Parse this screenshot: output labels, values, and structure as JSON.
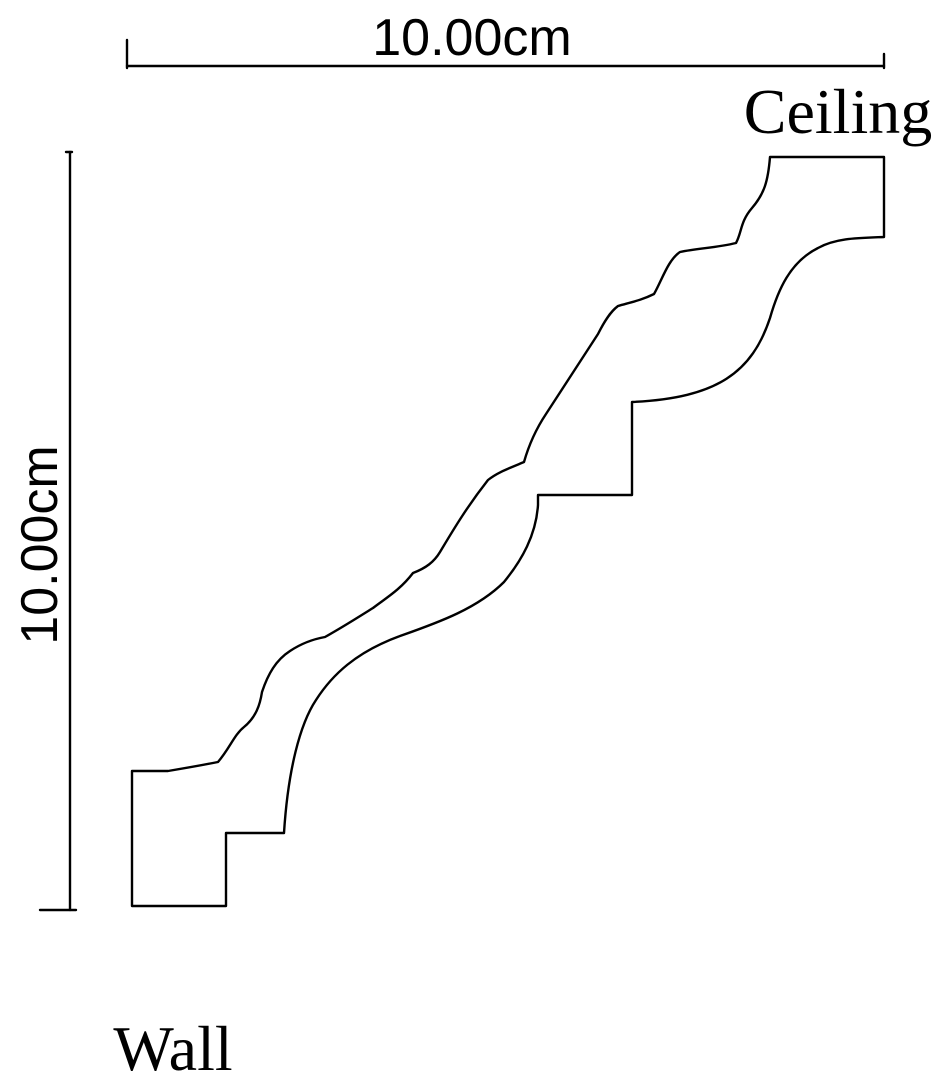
{
  "dimensions": {
    "width_label": "10.00cm",
    "height_label": "10.00cm"
  },
  "labels": {
    "ceiling": "Ceiling",
    "wall": "Wall"
  },
  "colors": {
    "ink": "#000000",
    "background": "#ffffff"
  }
}
